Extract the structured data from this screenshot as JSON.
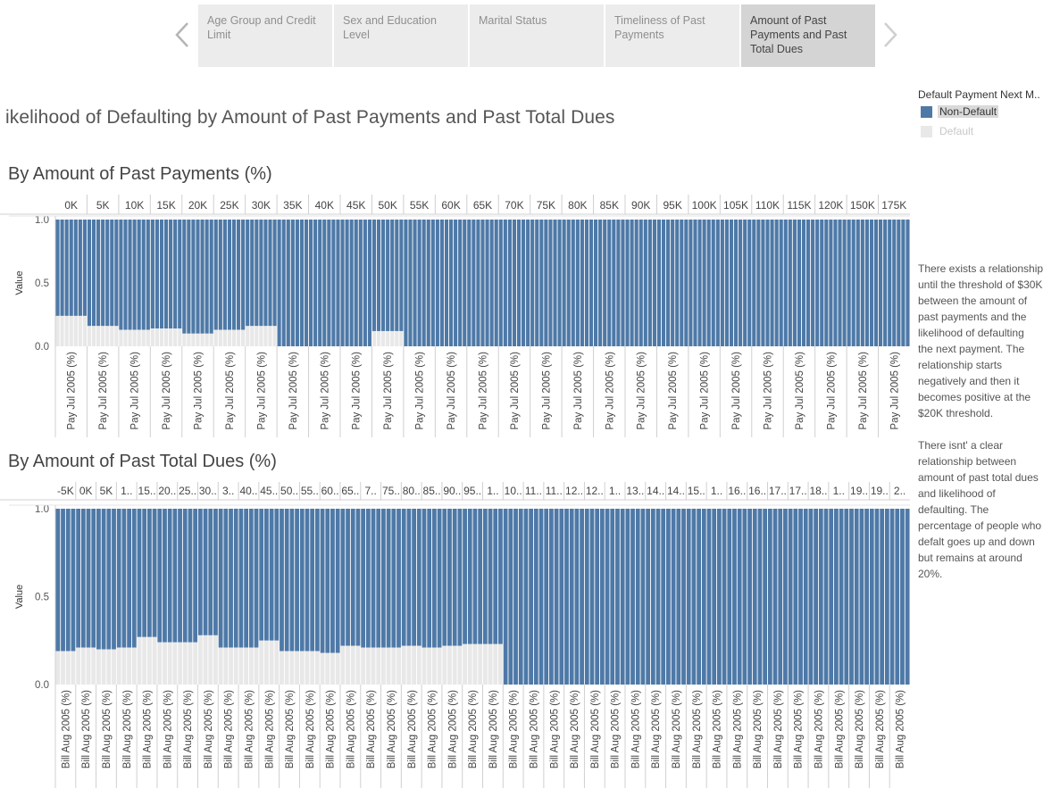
{
  "nav": {
    "tabs": [
      {
        "label": "Age Group and Credit\nLimit",
        "active": false
      },
      {
        "label": "Sex and Education\nLevel",
        "active": false
      },
      {
        "label": "Marital Status",
        "active": false
      },
      {
        "label": "Timeliness of Past\nPayments",
        "active": false
      },
      {
        "label": "Amount of Past\nPayments and Past\nTotal Dues",
        "active": true
      }
    ],
    "prev_icon": "chevron-left-icon",
    "next_icon": "chevron-right-icon"
  },
  "page_title": "ikelihood of Defaulting by Amount of Past Payments and Past Total Dues",
  "legend": {
    "title": "Default Payment Next M..",
    "items": [
      {
        "label": "Non-Default",
        "color": "#4e79a7",
        "selected": true
      },
      {
        "label": "Default",
        "color": "#e8e8e8",
        "selected": false
      }
    ]
  },
  "annotations": {
    "payments": "There exists a relationship\nuntil the threshold of $30K\nbetween the amount of\npast payments and the\nlikelihood of defaulting\nthe next payment. The\nrelationship starts\nnegatively and then it\nbecomes positive at the\n$20K threshold.",
    "dues": "There isnt' a clear\nrelationship between\namount of past total dues\nand likelihood of\ndefaulting. The\npercentage of people who\ndefalt goes up and down\nbut remains at around\n20%."
  },
  "colors": {
    "non_default": "#4e79a7",
    "default": "#e8e8e8",
    "grid": "#d0d0d0"
  },
  "chart_data": [
    {
      "type": "bar",
      "title": "By Amount of Past Payments (%)",
      "ylabel": "Value",
      "ylim": [
        0,
        1
      ],
      "yticks": [
        "1.0",
        "0.5",
        "0.0"
      ],
      "stacked": true,
      "bar_label": "Pay Jul 2005 (%)",
      "categories": [
        "0K",
        "5K",
        "10K",
        "15K",
        "20K",
        "25K",
        "30K",
        "35K",
        "40K",
        "45K",
        "50K",
        "55K",
        "60K",
        "65K",
        "70K",
        "75K",
        "80K",
        "85K",
        "90K",
        "95K",
        "100K",
        "105K",
        "110K",
        "115K",
        "120K",
        "150K",
        "175K"
      ],
      "bars_per_category": 7,
      "series": [
        {
          "name": "Default",
          "values": [
            0.24,
            0.16,
            0.13,
            0.14,
            0.1,
            0.13,
            0.16,
            0,
            0,
            0,
            0.12,
            0,
            0,
            0,
            0,
            0,
            0,
            0,
            0,
            0,
            0,
            0,
            0,
            0,
            0,
            0,
            0
          ]
        },
        {
          "name": "Non-Default",
          "values": [
            0.76,
            0.84,
            0.87,
            0.86,
            0.9,
            0.87,
            0.84,
            1,
            1,
            1,
            0.88,
            1,
            1,
            1,
            1,
            1,
            1,
            1,
            1,
            1,
            1,
            1,
            1,
            1,
            1,
            1,
            1
          ]
        }
      ]
    },
    {
      "type": "bar",
      "title": "By Amount of Past Total Dues (%)",
      "ylabel": "Value",
      "ylim": [
        0,
        1
      ],
      "yticks": [
        "1.0",
        "0.5",
        "0.0"
      ],
      "stacked": true,
      "bar_label": "Bill Aug 2005 (%)",
      "categories": [
        "-5K",
        "0K",
        "5K",
        "1..",
        "15..",
        "20..",
        "25..",
        "30..",
        "3..",
        "40..",
        "45..",
        "50..",
        "55..",
        "60..",
        "65..",
        "7..",
        "75..",
        "80..",
        "85..",
        "90..",
        "95..",
        "1..",
        "10..",
        "11..",
        "11..",
        "12..",
        "12..",
        "1..",
        "13..",
        "14..",
        "14..",
        "15..",
        "1..",
        "16..",
        "16..",
        "17..",
        "17..",
        "18..",
        "1..",
        "19..",
        "19..",
        "2.."
      ],
      "bars_per_category": 4,
      "series": [
        {
          "name": "Default",
          "values": [
            0.19,
            0.21,
            0.2,
            0.21,
            0.27,
            0.24,
            0.24,
            0.28,
            0.21,
            0.21,
            0.25,
            0.19,
            0.19,
            0.18,
            0.22,
            0.21,
            0.21,
            0.22,
            0.21,
            0.22,
            0.23,
            0.23,
            0,
            0,
            0,
            0,
            0,
            0,
            0,
            0,
            0,
            0,
            0,
            0,
            0,
            0,
            0,
            0,
            0,
            0,
            0,
            0
          ]
        },
        {
          "name": "Non-Default",
          "values": [
            0.81,
            0.79,
            0.8,
            0.79,
            0.73,
            0.76,
            0.76,
            0.72,
            0.79,
            0.79,
            0.75,
            0.81,
            0.81,
            0.82,
            0.78,
            0.79,
            0.79,
            0.78,
            0.79,
            0.78,
            0.77,
            0.77,
            1,
            1,
            1,
            1,
            1,
            1,
            1,
            1,
            1,
            1,
            1,
            1,
            1,
            1,
            1,
            1,
            1,
            1,
            1,
            1
          ]
        }
      ]
    }
  ]
}
